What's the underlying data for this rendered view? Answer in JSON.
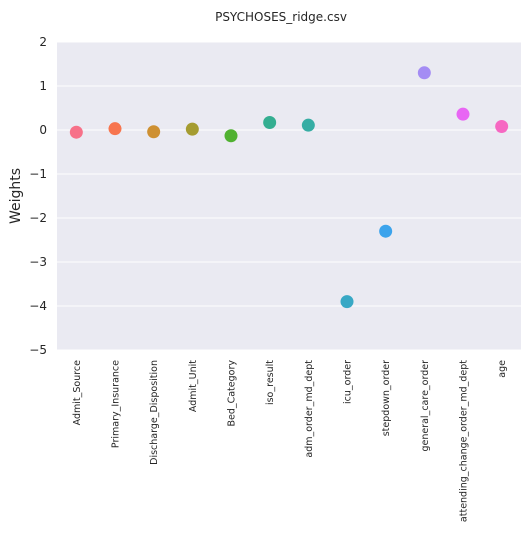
{
  "chart_data": {
    "type": "scatter",
    "title": "PSYCHOSES_ridge.csv",
    "xlabel": "",
    "ylabel": "Weights",
    "ylim": [
      -5,
      2
    ],
    "yticks": [
      2,
      1,
      0,
      -1,
      -2,
      -3,
      -4,
      -5
    ],
    "ytick_labels": [
      "2",
      "1",
      "0",
      "−1",
      "−2",
      "−3",
      "−4",
      "−5"
    ],
    "grid": true,
    "categories": [
      "Admit_Source",
      "Primary_Insurance",
      "Discharge_Disposition",
      "Admit_Unit",
      "Bed_Category",
      "iso_result",
      "adm_order_md_dept",
      "icu_order",
      "stepdown_order",
      "general_care_order",
      "attending_change_order_md_dept",
      "age"
    ],
    "values": [
      -0.05,
      0.03,
      -0.04,
      0.02,
      -0.13,
      0.17,
      0.11,
      -3.9,
      -2.3,
      1.3,
      0.36,
      0.08
    ],
    "colors": [
      "#f77189",
      "#f7754f",
      "#ce9032",
      "#a59c31",
      "#50b131",
      "#34ae91",
      "#36ada4",
      "#38a8c5",
      "#3ba3ec",
      "#a48cf4",
      "#e866f4",
      "#f668c2"
    ]
  }
}
